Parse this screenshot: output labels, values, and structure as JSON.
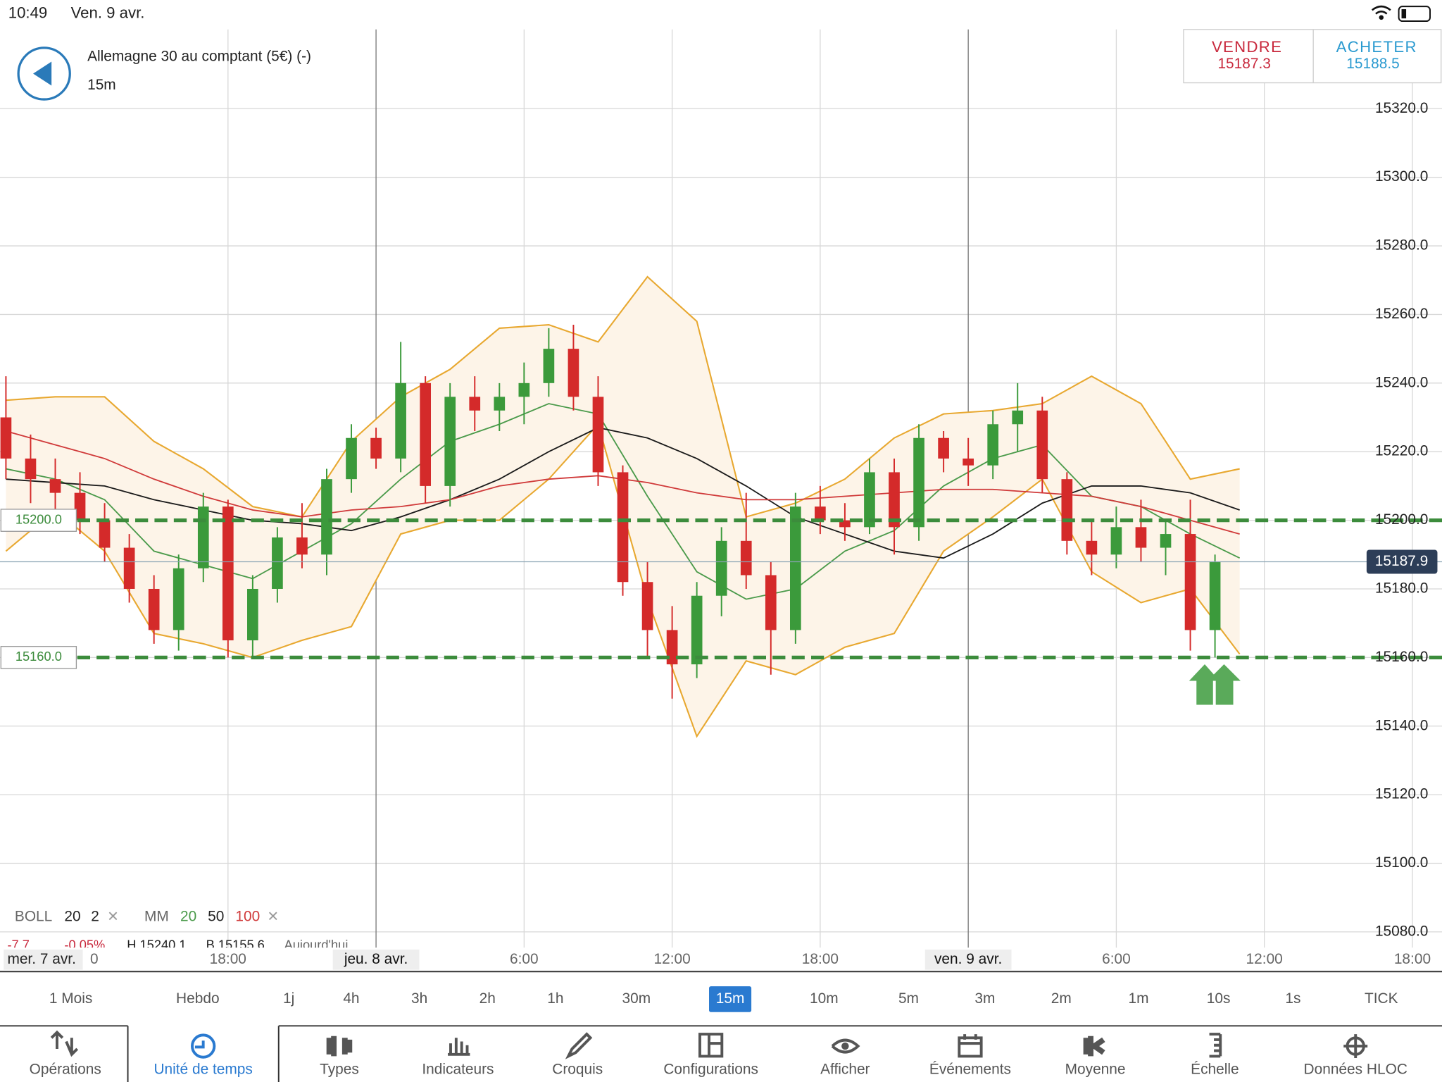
{
  "status_bar": {
    "time": "10:49",
    "date": "Ven. 9 avr."
  },
  "header": {
    "instrument": "Allemagne 30 au comptant (5€) (-)",
    "timeframe": "15m",
    "sell": {
      "label": "VENDRE",
      "price": "15187.3"
    },
    "buy": {
      "label": "ACHETER",
      "price": "15188.5"
    }
  },
  "indicators": {
    "boll": [
      "BOLL",
      "20",
      "2"
    ],
    "mm": [
      "MM",
      "20",
      "50",
      "100"
    ],
    "close": "×"
  },
  "stats": [
    "-7.7",
    "-0.05%",
    "H 15240.1",
    "B 15155.6",
    "Aujourd'hui"
  ],
  "x_start": [
    "mer. 7 avr.",
    "0"
  ],
  "chart_data": {
    "type": "candlestick",
    "x": [
      -15,
      -14,
      -13,
      -12,
      -11,
      -10,
      -9,
      -8,
      -7,
      -6,
      -5,
      -4,
      -3,
      -2,
      -1,
      0,
      1,
      2,
      3,
      4,
      5,
      6,
      7,
      8,
      9,
      10,
      11,
      12,
      13,
      14,
      15,
      16,
      17,
      18,
      19,
      20,
      21,
      22,
      23,
      24,
      25,
      26,
      27,
      28,
      29,
      30,
      31,
      32,
      33,
      34
    ],
    "open": [
      15230,
      15218,
      15212,
      15208,
      15200,
      15192,
      15180,
      15168,
      15186,
      15204,
      15165,
      15180,
      15195,
      15190,
      15212,
      15224,
      15218,
      15240,
      15210,
      15236,
      15232,
      15236,
      15240,
      15250,
      15236,
      15214,
      15182,
      15168,
      15158,
      15178,
      15194,
      15184,
      15168,
      15204,
      15200,
      15198,
      15214,
      15198,
      15224,
      15218,
      15216,
      15228,
      15232,
      15212,
      15194,
      15190,
      15198,
      15192,
      15196,
      15168
    ],
    "high": [
      15242,
      15225,
      15218,
      15214,
      15205,
      15196,
      15184,
      15190,
      15208,
      15206,
      15184,
      15198,
      15205,
      15215,
      15228,
      15227,
      15252,
      15242,
      15240,
      15242,
      15240,
      15246,
      15256,
      15257,
      15242,
      15216,
      15188,
      15175,
      15182,
      15198,
      15208,
      15188,
      15208,
      15210,
      15205,
      15218,
      15218,
      15228,
      15226,
      15224,
      15232,
      15240,
      15236,
      15214,
      15200,
      15204,
      15206,
      15200,
      15206,
      15190
    ],
    "low": [
      15212,
      15205,
      15200,
      15196,
      15188,
      15176,
      15164,
      15162,
      15182,
      15160,
      15160,
      15176,
      15186,
      15184,
      15208,
      15215,
      15214,
      15205,
      15204,
      15226,
      15226,
      15228,
      15236,
      15232,
      15210,
      15178,
      15160,
      15148,
      15154,
      15172,
      15180,
      15155,
      15164,
      15196,
      15194,
      15196,
      15190,
      15194,
      15214,
      15210,
      15212,
      15220,
      15208,
      15190,
      15184,
      15186,
      15188,
      15184,
      15162,
      15160
    ],
    "close": [
      15218,
      15212,
      15208,
      15200,
      15192,
      15180,
      15168,
      15186,
      15204,
      15165,
      15180,
      15195,
      15190,
      15212,
      15224,
      15218,
      15240,
      15210,
      15236,
      15232,
      15236,
      15240,
      15250,
      15236,
      15214,
      15182,
      15168,
      15158,
      15178,
      15194,
      15184,
      15168,
      15204,
      15200,
      15198,
      15214,
      15198,
      15224,
      15218,
      15216,
      15228,
      15232,
      15212,
      15194,
      15190,
      15198,
      15192,
      15196,
      15168,
      15188
    ],
    "up_color": "#3b9a3b",
    "down_color": "#d42a2a",
    "overlay_x": [
      -15,
      -13,
      -11,
      -9,
      -7,
      -5,
      -3,
      -1,
      1,
      3,
      5,
      7,
      9,
      11,
      13,
      15,
      17,
      19,
      21,
      23,
      25,
      27,
      29,
      31,
      33,
      35
    ],
    "bollinger": {
      "color": "#e8a830",
      "fill": "#fdf4e8",
      "upper": [
        15235,
        15236,
        15236,
        15223,
        15215,
        15204,
        15201,
        15223,
        15236,
        15244,
        15256,
        15257,
        15252,
        15271,
        15258,
        15201,
        15205,
        15212,
        15224,
        15231,
        15232,
        15234,
        15242,
        15234,
        15212,
        15215
      ],
      "lower": [
        15191,
        15203,
        15191,
        15167,
        15164,
        15160,
        15165,
        15169,
        15196,
        15200,
        15200,
        15212,
        15228,
        15177,
        15137,
        15159,
        15155,
        15163,
        15167,
        15191,
        15201,
        15212,
        15185,
        15176,
        15180,
        15161
      ]
    },
    "moving_averages": [
      {
        "color": "#4a9a4a",
        "values": [
          15215,
          15212,
          15206,
          15191,
          15187,
          15183,
          15191,
          15199,
          15212,
          15223,
          15228,
          15234,
          15231,
          15207,
          15185,
          15177,
          15180,
          15191,
          15197,
          15210,
          15218,
          15222,
          15207,
          15204,
          15196,
          15189
        ]
      },
      {
        "color": "#1a1a1a",
        "values": [
          15212,
          15211,
          15210,
          15206,
          15203,
          15200,
          15199,
          15197,
          15201,
          15206,
          15212,
          15220,
          15227,
          15224,
          15218,
          15210,
          15201,
          15196,
          15191,
          15189,
          15196,
          15205,
          15210,
          15210,
          15208,
          15203
        ]
      },
      {
        "color": "#d03a3a",
        "values": [
          15226,
          15222,
          15218,
          15212,
          15207,
          15203,
          15201,
          15203,
          15204,
          15206,
          15210,
          15212,
          15213,
          15211,
          15208,
          15206,
          15206,
          15207,
          15208,
          15209,
          15209,
          15208,
          15207,
          15204,
          15200,
          15196
        ]
      }
    ],
    "levels": [
      {
        "value": 15200,
        "label": "15200.0",
        "color": "#3c8c3c"
      },
      {
        "value": 15160,
        "label": "15160.0",
        "color": "#3c8c3c"
      }
    ],
    "last_price": {
      "value": 15187.9,
      "label": "15187.9"
    },
    "xlim": [
      -15.24,
      43.2
    ],
    "xticks": [
      {
        "value": -6,
        "label": "18:00"
      },
      {
        "value": 0,
        "label": "jeu. 8 avr.",
        "day": true
      },
      {
        "value": 6,
        "label": "6:00"
      },
      {
        "value": 12,
        "label": "12:00"
      },
      {
        "value": 18,
        "label": "18:00"
      },
      {
        "value": 24,
        "label": "ven. 9 avr.",
        "day": true
      },
      {
        "value": 30,
        "label": "6:00"
      },
      {
        "value": 36,
        "label": "12:00"
      },
      {
        "value": 42,
        "label": "18:00"
      }
    ],
    "ylim": [
      15075.4,
      15343.1
    ],
    "yticks": [
      {
        "value": 15080,
        "label": "15080.0"
      },
      {
        "value": 15100,
        "label": "15100.0"
      },
      {
        "value": 15120,
        "label": "15120.0"
      },
      {
        "value": 15140,
        "label": "15140.0"
      },
      {
        "value": 15160,
        "label": "15160.0"
      },
      {
        "value": 15180,
        "label": "15180.0"
      },
      {
        "value": 15200,
        "label": "15200.0"
      },
      {
        "value": 15220,
        "label": "15220.0"
      },
      {
        "value": 15240,
        "label": "15240.0"
      },
      {
        "value": 15260,
        "label": "15260.0"
      },
      {
        "value": 15280,
        "label": "15280.0"
      },
      {
        "value": 15300,
        "label": "15300.0"
      },
      {
        "value": 15320,
        "label": "15320.0"
      }
    ],
    "grid": true
  },
  "timeframes": [
    {
      "label": "1 Mois"
    },
    {
      "label": "Hebdo"
    },
    {
      "label": "1j"
    },
    {
      "label": "4h"
    },
    {
      "label": "3h"
    },
    {
      "label": "2h"
    },
    {
      "label": "1h"
    },
    {
      "label": "30m"
    },
    {
      "label": "15m",
      "selected": true
    },
    {
      "label": "10m"
    },
    {
      "label": "5m"
    },
    {
      "label": "3m"
    },
    {
      "label": "2m"
    },
    {
      "label": "1m"
    },
    {
      "label": "10s"
    },
    {
      "label": "1s"
    },
    {
      "label": "TICK"
    }
  ],
  "tabs": [
    {
      "label": "Opérations"
    },
    {
      "label": "Unité de temps",
      "selected": true
    },
    {
      "label": "Types"
    },
    {
      "label": "Indicateurs"
    },
    {
      "label": "Croquis"
    },
    {
      "label": "Configurations"
    },
    {
      "label": "Afficher"
    },
    {
      "label": "Événements"
    },
    {
      "label": "Moyenne"
    },
    {
      "label": "Échelle"
    },
    {
      "label": "Données HLOC"
    }
  ]
}
